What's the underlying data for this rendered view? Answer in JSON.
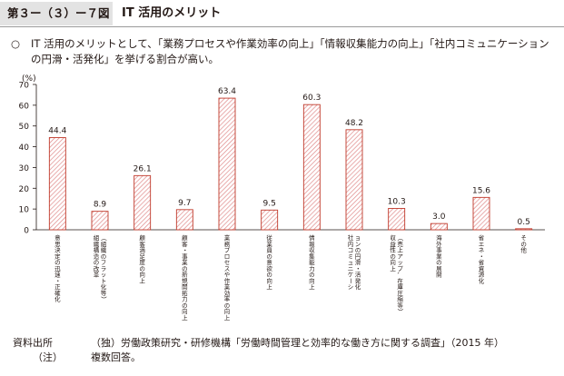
{
  "header": {
    "figure_label": "第３ー（３）ー７図",
    "title": "IT 活用のメリット"
  },
  "summary": {
    "bullet": "○",
    "text": "IT 活用のメリットとして、「業務プロセスや作業効率の向上」「情報収集能力の向上」「社内コミュニケーションの円滑・活発化」を挙げる割合が高い。"
  },
  "chart_data": {
    "type": "bar",
    "unit_label": "(%)",
    "ylim": [
      0,
      70
    ],
    "yticks": [
      0,
      10,
      20,
      30,
      40,
      50,
      60,
      70
    ],
    "categories": [
      "意思決定の迅速・正確化",
      "組織構造の改革（組織のフラット化等）",
      "顧客満足度の向上",
      "顧客・事業の新規開拓力の向上",
      "業務プロセスや作業効率の向上",
      "従業員の意欲の向上",
      "情報収集能力の向上",
      "社内コミュニケーションの円滑・活発化",
      "収益性の向上（売上アップ、在庫圧縮等）",
      "海外事業の展開",
      "省エネ・省資源化",
      "その他"
    ],
    "values": [
      44.4,
      8.9,
      26.1,
      9.7,
      63.4,
      9.5,
      60.3,
      48.2,
      10.3,
      3.0,
      15.6,
      0.5
    ],
    "value_labels": [
      "44.4",
      "8.9",
      "26.1",
      "9.7",
      "63.4",
      "9.5",
      "60.3",
      "48.2",
      "10.3",
      "3.0",
      "15.6",
      "0.5"
    ],
    "grid": false,
    "bar_stroke": "#c0392b",
    "bar_hatch": "#e08a8a"
  },
  "notes": [
    {
      "label": "資料出所",
      "text": "（独）労働政策研究・研修機構「労働時間管理と効率的な働き方に関する調査」（2015 年）"
    },
    {
      "label": "（注）",
      "text": "複数回答。"
    }
  ]
}
